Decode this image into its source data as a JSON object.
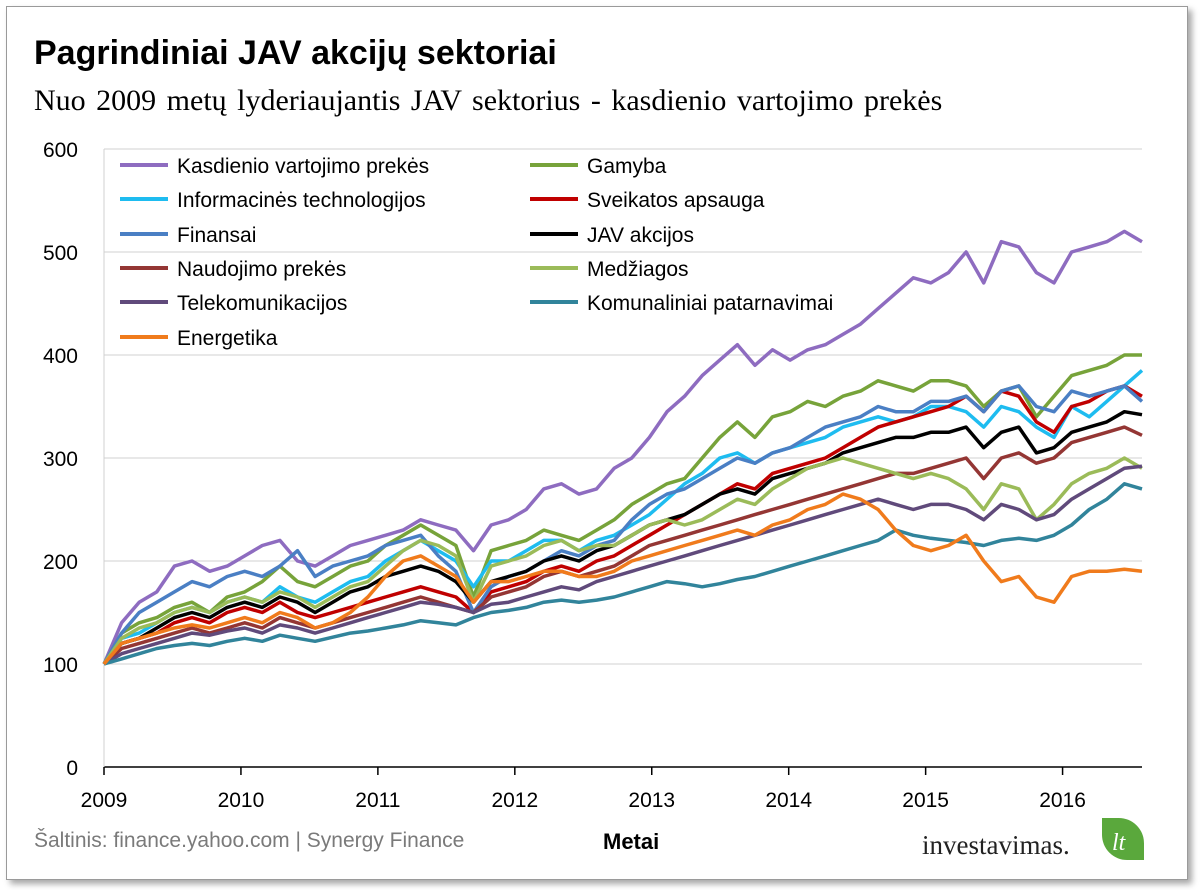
{
  "title": "Pagrindiniai JAV akcijų sektoriai",
  "subtitle": "Nuo 2009 metų lyderiaujantis JAV sektorius - kasdienio vartojimo prekės",
  "source": "Šaltinis: finance.yahoo.com | Synergy Finance",
  "logo": {
    "text": "investavimas.",
    "leaf_text": "lt"
  },
  "chart_data": {
    "type": "line",
    "xlabel": "Metai",
    "ylabel": "",
    "x_start": 2009,
    "x_end": 2016.58,
    "xticks": [
      "2009",
      "2010",
      "2011",
      "2012",
      "2013",
      "2014",
      "2015",
      "2016"
    ],
    "ylim": [
      0,
      600
    ],
    "yticks": [
      0,
      100,
      200,
      300,
      400,
      500,
      600
    ],
    "grid": "horizontal",
    "legend_position": "top-left",
    "series": [
      {
        "name": "Kasdienio vartojimo prekės",
        "color": "#8e6cc0",
        "values": [
          100,
          140,
          160,
          170,
          195,
          200,
          190,
          195,
          205,
          215,
          220,
          200,
          195,
          205,
          215,
          220,
          225,
          230,
          240,
          235,
          230,
          210,
          235,
          240,
          250,
          270,
          275,
          265,
          270,
          290,
          300,
          320,
          345,
          360,
          380,
          395,
          410,
          390,
          405,
          395,
          405,
          410,
          420,
          430,
          445,
          460,
          475,
          470,
          480,
          500,
          470,
          510,
          505,
          480,
          470,
          500,
          505,
          510,
          520,
          510
        ]
      },
      {
        "name": "Gamyba",
        "color": "#77a33a",
        "values": [
          100,
          130,
          140,
          145,
          155,
          160,
          150,
          165,
          170,
          180,
          195,
          180,
          175,
          185,
          195,
          200,
          215,
          225,
          235,
          225,
          215,
          165,
          210,
          215,
          220,
          230,
          225,
          220,
          230,
          240,
          255,
          265,
          275,
          280,
          300,
          320,
          335,
          320,
          340,
          345,
          355,
          350,
          360,
          365,
          375,
          370,
          365,
          375,
          375,
          370,
          350,
          365,
          370,
          340,
          360,
          380,
          385,
          390,
          400,
          400
        ]
      },
      {
        "name": "Informacinės technologijos",
        "color": "#1ebcf0",
        "values": [
          100,
          125,
          130,
          140,
          150,
          155,
          150,
          160,
          165,
          160,
          175,
          165,
          160,
          170,
          180,
          185,
          200,
          210,
          220,
          210,
          200,
          175,
          200,
          200,
          210,
          220,
          220,
          210,
          220,
          225,
          235,
          245,
          260,
          275,
          285,
          300,
          305,
          295,
          305,
          310,
          315,
          320,
          330,
          335,
          340,
          335,
          340,
          350,
          350,
          345,
          330,
          350,
          345,
          330,
          320,
          350,
          340,
          355,
          370,
          385
        ]
      },
      {
        "name": "Sveikatos apsauga",
        "color": "#c00000",
        "values": [
          100,
          120,
          125,
          130,
          140,
          145,
          140,
          150,
          155,
          150,
          160,
          150,
          145,
          150,
          155,
          160,
          165,
          170,
          175,
          170,
          165,
          150,
          170,
          175,
          180,
          190,
          195,
          190,
          200,
          205,
          215,
          225,
          235,
          245,
          255,
          265,
          275,
          270,
          285,
          290,
          295,
          300,
          310,
          320,
          330,
          335,
          340,
          345,
          350,
          360,
          345,
          365,
          360,
          335,
          325,
          350,
          355,
          365,
          370,
          360
        ]
      },
      {
        "name": "Finansai",
        "color": "#4a7fc4",
        "values": [
          100,
          130,
          150,
          160,
          170,
          180,
          175,
          185,
          190,
          185,
          195,
          210,
          185,
          195,
          200,
          205,
          215,
          220,
          225,
          205,
          190,
          150,
          175,
          185,
          190,
          200,
          210,
          205,
          215,
          220,
          240,
          255,
          265,
          270,
          280,
          290,
          300,
          295,
          305,
          310,
          320,
          330,
          335,
          340,
          350,
          345,
          345,
          355,
          355,
          360,
          345,
          365,
          370,
          350,
          345,
          365,
          360,
          365,
          370,
          355
        ]
      },
      {
        "name": "JAV akcijos",
        "color": "#000000",
        "values": [
          100,
          120,
          125,
          135,
          145,
          150,
          145,
          155,
          160,
          155,
          165,
          160,
          150,
          160,
          170,
          175,
          185,
          190,
          195,
          190,
          180,
          160,
          180,
          185,
          190,
          200,
          205,
          200,
          210,
          215,
          225,
          235,
          240,
          245,
          255,
          265,
          270,
          265,
          280,
          285,
          290,
          295,
          305,
          310,
          315,
          320,
          320,
          325,
          325,
          330,
          310,
          325,
          330,
          305,
          310,
          325,
          330,
          335,
          345,
          342
        ]
      },
      {
        "name": "Naudojimo prekės",
        "color": "#943634",
        "values": [
          100,
          115,
          120,
          125,
          130,
          135,
          130,
          135,
          140,
          135,
          145,
          140,
          135,
          140,
          145,
          150,
          155,
          160,
          165,
          160,
          155,
          150,
          165,
          170,
          175,
          185,
          190,
          185,
          190,
          195,
          205,
          215,
          220,
          225,
          230,
          235,
          240,
          245,
          250,
          255,
          260,
          265,
          270,
          275,
          280,
          285,
          285,
          290,
          295,
          300,
          280,
          300,
          305,
          295,
          300,
          315,
          320,
          325,
          330,
          322
        ]
      },
      {
        "name": "Medžiagos",
        "color": "#9bbb59",
        "values": [
          100,
          125,
          135,
          140,
          150,
          155,
          150,
          160,
          165,
          160,
          170,
          165,
          155,
          165,
          175,
          180,
          195,
          210,
          220,
          215,
          205,
          160,
          195,
          200,
          205,
          215,
          220,
          210,
          215,
          215,
          225,
          235,
          240,
          235,
          240,
          250,
          260,
          255,
          270,
          280,
          290,
          295,
          300,
          295,
          290,
          285,
          280,
          285,
          280,
          270,
          250,
          275,
          270,
          240,
          255,
          275,
          285,
          290,
          300,
          290
        ]
      },
      {
        "name": "Telekomunikacijos",
        "color": "#604a7b",
        "values": [
          100,
          110,
          115,
          120,
          125,
          130,
          128,
          132,
          135,
          130,
          138,
          135,
          130,
          135,
          140,
          145,
          150,
          155,
          160,
          158,
          155,
          150,
          158,
          160,
          165,
          170,
          175,
          172,
          180,
          185,
          190,
          195,
          200,
          205,
          210,
          215,
          220,
          225,
          230,
          235,
          240,
          245,
          250,
          255,
          260,
          255,
          250,
          255,
          255,
          250,
          240,
          255,
          250,
          240,
          245,
          260,
          270,
          280,
          290,
          292
        ]
      },
      {
        "name": "Komunaliniai patarnavimai",
        "color": "#31849b",
        "values": [
          100,
          105,
          110,
          115,
          118,
          120,
          118,
          122,
          125,
          122,
          128,
          125,
          122,
          126,
          130,
          132,
          135,
          138,
          142,
          140,
          138,
          145,
          150,
          152,
          155,
          160,
          162,
          160,
          162,
          165,
          170,
          175,
          180,
          178,
          175,
          178,
          182,
          185,
          190,
          195,
          200,
          205,
          210,
          215,
          220,
          230,
          225,
          222,
          220,
          218,
          215,
          220,
          222,
          220,
          225,
          235,
          250,
          260,
          275,
          270
        ]
      },
      {
        "name": "Energetika",
        "color": "#f07b1c",
        "values": [
          100,
          120,
          125,
          130,
          135,
          138,
          135,
          140,
          145,
          140,
          150,
          145,
          135,
          140,
          150,
          165,
          185,
          200,
          205,
          195,
          185,
          160,
          180,
          180,
          185,
          190,
          190,
          185,
          185,
          190,
          200,
          205,
          210,
          215,
          220,
          225,
          230,
          225,
          235,
          240,
          250,
          255,
          265,
          260,
          250,
          230,
          215,
          210,
          215,
          225,
          200,
          180,
          185,
          165,
          160,
          185,
          190,
          190,
          192,
          190
        ]
      }
    ]
  }
}
